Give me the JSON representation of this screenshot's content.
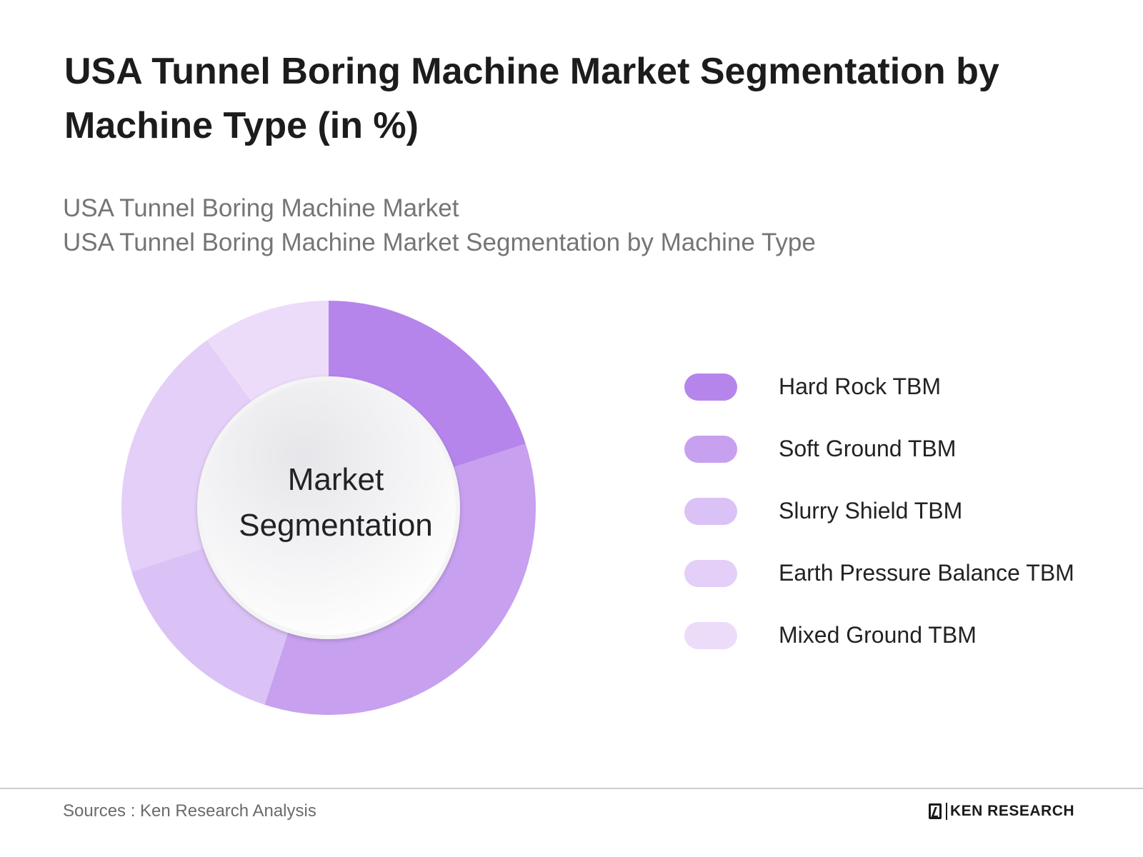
{
  "header": {
    "title": "USA Tunnel Boring Machine Market Segmentation by Machine Type (in %)",
    "subtitle_line1": "USA Tunnel Boring Machine Market",
    "subtitle_line2": "USA Tunnel Boring Machine Market Segmentation by Machine Type"
  },
  "center_label": {
    "line1": "Market",
    "line2": "Segmentation"
  },
  "footer": {
    "source": "Sources : Ken Research Analysis",
    "brand": "KEN RESEARCH"
  },
  "colors": {
    "hard_rock": "#b585ec",
    "soft_ground": "#c7a0ef",
    "slurry_shield": "#dbc2f6",
    "earth_pressure": "#e3cff7",
    "mixed_ground": "#ecdcfa"
  },
  "chart_data": {
    "type": "pie",
    "title": "USA Tunnel Boring Machine Market Segmentation by Machine Type (in %)",
    "donut": true,
    "categories": [
      "Hard Rock TBM",
      "Soft Ground TBM",
      "Slurry Shield TBM",
      "Earth Pressure Balance TBM",
      "Mixed Ground TBM"
    ],
    "values": [
      20,
      35,
      15,
      20,
      10
    ],
    "colors": [
      "#b585ec",
      "#c7a0ef",
      "#dbc2f6",
      "#e3cff7",
      "#ecdcfa"
    ],
    "legend_position": "right"
  }
}
